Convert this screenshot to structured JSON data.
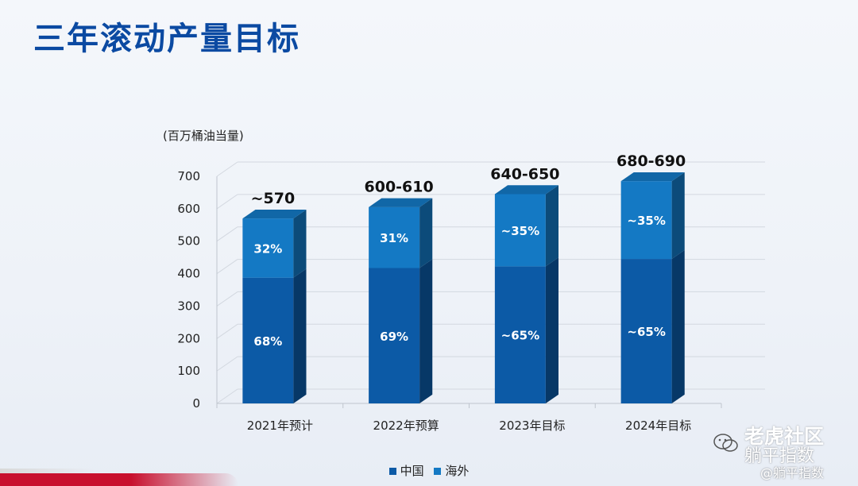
{
  "page": {
    "title": "三年滚动产量目标"
  },
  "chart_data": {
    "type": "bar",
    "stacked": true,
    "unit_label": "(百万桶油当量)",
    "categories": [
      "2021年预计",
      "2022年预算",
      "2023年目标",
      "2024年目标"
    ],
    "series": [
      {
        "name": "中国",
        "values": [
          387.6,
          417.3,
          422.5,
          445.3
        ],
        "labels": [
          "68%",
          "69%",
          "~65%",
          "~65%"
        ],
        "color": "#0c5aa6"
      },
      {
        "name": "海外",
        "values": [
          182.4,
          187.7,
          222.5,
          239.7
        ],
        "labels": [
          "32%",
          "31%",
          "~35%",
          "~35%"
        ],
        "color": "#1479c4"
      }
    ],
    "totals": [
      "~570",
      "600-610",
      "640-650",
      "680-690"
    ],
    "ylim": [
      0,
      700
    ],
    "yticks": [
      0,
      100,
      200,
      300,
      400,
      500,
      600,
      700
    ],
    "grid": true,
    "legend_position": "bottom"
  },
  "watermark": {
    "big": "老虎社区",
    "sub": "躺平指数",
    "small": "@躺平指数"
  }
}
